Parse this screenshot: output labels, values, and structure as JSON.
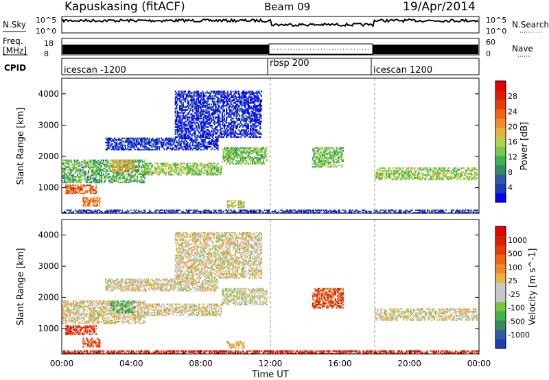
{
  "header": {
    "station": "Kapuskasing (fitACF)",
    "beam": "Beam 09",
    "date": "19/Apr/2014"
  },
  "top_strips": {
    "nsky_label": "N.Sky",
    "nsky_ticks": [
      "10^5",
      "10^0"
    ],
    "nsearch_label": "N.Search",
    "nsearch_ticks": [
      "10^5",
      "10^0"
    ],
    "freq_label_line1": "Freq.",
    "freq_label_line2": "[MHz]",
    "freq_ticks": [
      "18",
      "8"
    ],
    "nave_label": "Nave",
    "nave_ticks": [
      "60",
      "0"
    ],
    "cpid_label": "CPID",
    "cpid_segments": [
      {
        "label": "icescan -1200",
        "start_hour": 0,
        "end_hour": 12
      },
      {
        "label": "rbsp 200",
        "start_hour": 12,
        "end_hour": 18
      },
      {
        "label": "icescan 1200",
        "start_hour": 18,
        "end_hour": 24
      }
    ]
  },
  "xaxis": {
    "label": "Time UT",
    "ticks": [
      "00:00",
      "04:00",
      "08:00",
      "12:00",
      "16:00",
      "20:00",
      "00:00"
    ]
  },
  "chart_data": [
    {
      "type": "heatmap",
      "name": "power",
      "ylabel": "Slant Range [km]",
      "yticks": [
        "1000",
        "2000",
        "3000",
        "4000"
      ],
      "xlim_hours": [
        0,
        24
      ],
      "ylim_km": [
        180,
        4500
      ],
      "colorbar": {
        "title": "Power [dB]",
        "ticks": [
          "4",
          "8",
          "12",
          "16",
          "20",
          "24",
          "28"
        ],
        "colors": [
          "#0000ff",
          "#1e3cb4",
          "#2f5aa8",
          "#338a5e",
          "#3cb44b",
          "#77c84d",
          "#b4d24d",
          "#e6b53c",
          "#f08c28",
          "#f06414",
          "#e63c0a",
          "#dc1e00",
          "#e60000"
        ]
      },
      "echo_regions": [
        {
          "t0": 0.0,
          "t1": 4.8,
          "r0": 1150,
          "r1": 1900,
          "level": 0.35
        },
        {
          "t0": 0.2,
          "t1": 2.0,
          "r0": 800,
          "r1": 1100,
          "level": 0.75
        },
        {
          "t0": 1.2,
          "t1": 2.2,
          "r0": 400,
          "r1": 700,
          "level": 0.7
        },
        {
          "t0": 2.8,
          "t1": 4.2,
          "r0": 1500,
          "r1": 1900,
          "level": 0.6
        },
        {
          "t0": 4.8,
          "t1": 9.2,
          "r0": 1400,
          "r1": 1800,
          "level": 0.45
        },
        {
          "t0": 9.2,
          "t1": 11.8,
          "r0": 1750,
          "r1": 2300,
          "level": 0.4
        },
        {
          "t0": 9.5,
          "t1": 10.5,
          "r0": 350,
          "r1": 600,
          "level": 0.5
        },
        {
          "t0": 14.4,
          "t1": 16.2,
          "r0": 1650,
          "r1": 2300,
          "level": 0.4
        },
        {
          "t0": 18.0,
          "t1": 23.9,
          "r0": 1250,
          "r1": 1650,
          "level": 0.45
        },
        {
          "t0": 2.5,
          "t1": 9.0,
          "r0": 2200,
          "r1": 2600,
          "level": 0.1
        },
        {
          "t0": 6.5,
          "t1": 11.5,
          "r0": 2600,
          "r1": 4100,
          "level": 0.08
        },
        {
          "t0": 0.0,
          "t1": 24.0,
          "r0": 180,
          "r1": 300,
          "level": 0.1
        }
      ]
    },
    {
      "type": "heatmap",
      "name": "velocity",
      "ylabel": "Slant Range [km]",
      "yticks": [
        "1000",
        "2000",
        "3000",
        "4000"
      ],
      "xlim_hours": [
        0,
        24
      ],
      "ylim_km": [
        180,
        4500
      ],
      "colorbar": {
        "title": "Velocity [m s^-1]",
        "ticks": [
          "1000",
          "500",
          "100",
          "25",
          "-25",
          "-100",
          "-500",
          "-1000"
        ],
        "colors": [
          "#1e3cb4",
          "#2f5aa8",
          "#338a5e",
          "#3cb44b",
          "#78c83c",
          "#c8c8c8",
          "#c8c8c8",
          "#e6b53c",
          "#f08c28",
          "#f06414",
          "#e63c0a",
          "#dc1e00",
          "#e60000"
        ]
      },
      "echo_regions": [
        {
          "t0": 0.0,
          "t1": 4.8,
          "r0": 1150,
          "r1": 1900,
          "level": 0.5
        },
        {
          "t0": 0.2,
          "t1": 2.0,
          "r0": 800,
          "r1": 1100,
          "level": 0.85
        },
        {
          "t0": 1.2,
          "t1": 2.2,
          "r0": 400,
          "r1": 700,
          "level": 0.8
        },
        {
          "t0": 2.8,
          "t1": 4.2,
          "r0": 1500,
          "r1": 1900,
          "level": 0.3
        },
        {
          "t0": 4.8,
          "t1": 9.2,
          "r0": 1400,
          "r1": 1800,
          "level": 0.5
        },
        {
          "t0": 9.2,
          "t1": 11.8,
          "r0": 1750,
          "r1": 2300,
          "level": 0.45
        },
        {
          "t0": 9.5,
          "t1": 10.5,
          "r0": 350,
          "r1": 600,
          "level": 0.6
        },
        {
          "t0": 14.4,
          "t1": 16.2,
          "r0": 1650,
          "r1": 2300,
          "level": 0.8
        },
        {
          "t0": 18.0,
          "t1": 23.9,
          "r0": 1250,
          "r1": 1650,
          "level": 0.5
        },
        {
          "t0": 2.5,
          "t1": 9.0,
          "r0": 2200,
          "r1": 2600,
          "level": 0.5
        },
        {
          "t0": 6.5,
          "t1": 11.5,
          "r0": 2600,
          "r1": 4100,
          "level": 0.5
        },
        {
          "t0": 0.0,
          "t1": 24.0,
          "r0": 180,
          "r1": 300,
          "level": 0.9
        }
      ]
    }
  ]
}
